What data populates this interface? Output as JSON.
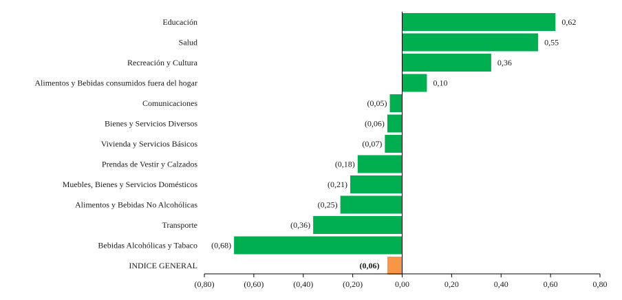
{
  "chart_data": {
    "type": "bar",
    "orientation": "horizontal",
    "categories": [
      "Educación",
      "Salud",
      "Recreación y Cultura",
      "Alimentos y Bebidas consumidos fuera del hogar",
      "Comunicaciones",
      "Bienes y Servicios Diversos",
      "Vivienda y Servicios Básicos",
      "Prendas de Vestir y Calzados",
      "Muebles, Bienes y Servicios Domésticos",
      "Alimentos y Bebidas No Alcohólicas",
      "Transporte",
      "Bebidas Alcohólicas y Tabaco",
      "INDICE GENERAL"
    ],
    "values": [
      0.62,
      0.55,
      0.36,
      0.1,
      -0.05,
      -0.06,
      -0.07,
      -0.18,
      -0.21,
      -0.25,
      -0.36,
      -0.68,
      -0.06
    ],
    "value_labels": [
      "0,62",
      "0,55",
      "0,36",
      "0,10",
      "(0,05)",
      "(0,06)",
      "(0,07)",
      "(0,18)",
      "(0,21)",
      "(0,25)",
      "(0,36)",
      "(0,68)",
      "(0,06)"
    ],
    "bar_colors": [
      "#00b050",
      "#00b050",
      "#00b050",
      "#00b050",
      "#00b050",
      "#00b050",
      "#00b050",
      "#00b050",
      "#00b050",
      "#00b050",
      "#00b050",
      "#00b050",
      "#f79646"
    ],
    "xlim": [
      -0.8,
      0.8
    ],
    "xticks": [
      -0.8,
      -0.6,
      -0.4,
      -0.2,
      0.0,
      0.2,
      0.4,
      0.6,
      0.8
    ],
    "xtick_labels": [
      "(0,80)",
      "(0,60)",
      "(0,40)",
      "(0,20)",
      "0,00",
      "0,20",
      "0,40",
      "0,60",
      "0,80"
    ],
    "title": "",
    "xlabel": "",
    "ylabel": "",
    "grid": false,
    "legend": "none"
  }
}
